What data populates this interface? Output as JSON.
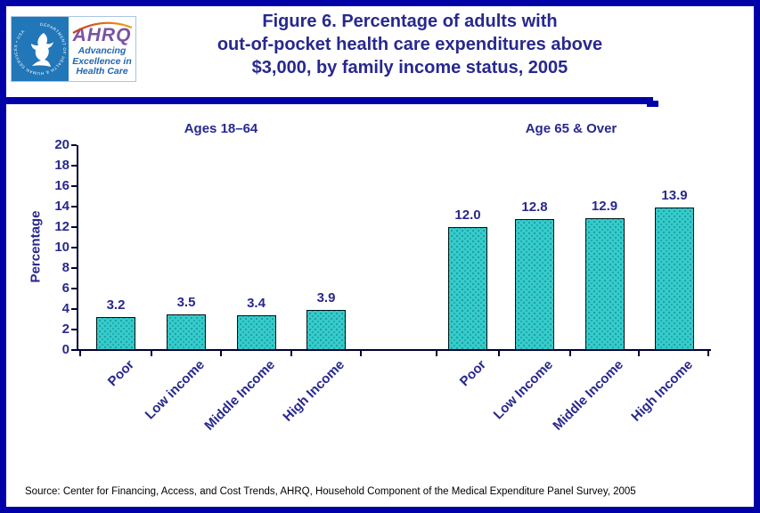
{
  "header": {
    "title_lines": [
      "Figure 6. Percentage of adults with",
      "out-of-pocket health care expenditures above",
      "$3,000, by family income status, 2005"
    ]
  },
  "logo": {
    "seal_text": "DEPARTMENT OF HEALTH & HUMAN SERVICES • USA",
    "acronym": "AHRQ",
    "tagline_lines": [
      "Advancing",
      "Excellence in",
      "Health Care"
    ]
  },
  "chart_data": {
    "type": "bar",
    "title": "Percentage of adults with out-of-pocket health care expenditures above $3,000, by family income status, 2005",
    "ylabel": "Percentage",
    "ylim": [
      0,
      20
    ],
    "yticks": [
      0,
      2,
      4,
      6,
      8,
      10,
      12,
      14,
      16,
      18,
      20
    ],
    "grid": false,
    "legend": "none",
    "bar_color": "#35CBCB",
    "axis_color": "#000033",
    "text_color": "#28288E",
    "groups": [
      {
        "label": "Ages 18–64",
        "categories": [
          "Poor",
          "Low income",
          "Middle Income",
          "High Income"
        ],
        "values": [
          3.2,
          3.5,
          3.4,
          3.9
        ],
        "value_labels": [
          "3.2",
          "3.5",
          "3.4",
          "3.9"
        ]
      },
      {
        "label": "Age 65 & Over",
        "categories": [
          "Poor",
          "Low Income",
          "Middle Income",
          "High Income"
        ],
        "values": [
          12.0,
          12.8,
          12.9,
          13.9
        ],
        "value_labels": [
          "12.0",
          "12.8",
          "12.9",
          "13.9"
        ]
      }
    ]
  },
  "footer": {
    "source": "Source: Center for Financing, Access, and Cost Trends, AHRQ, Household Component of the Medical Expenditure Panel Survey, 2005"
  },
  "colors": {
    "page_border": "#0101A8",
    "title_navy": "#28288E",
    "ahrq_purple": "#7B52A1",
    "hhs_blue": "#2177B8",
    "tagline_blue": "#2565AE"
  }
}
